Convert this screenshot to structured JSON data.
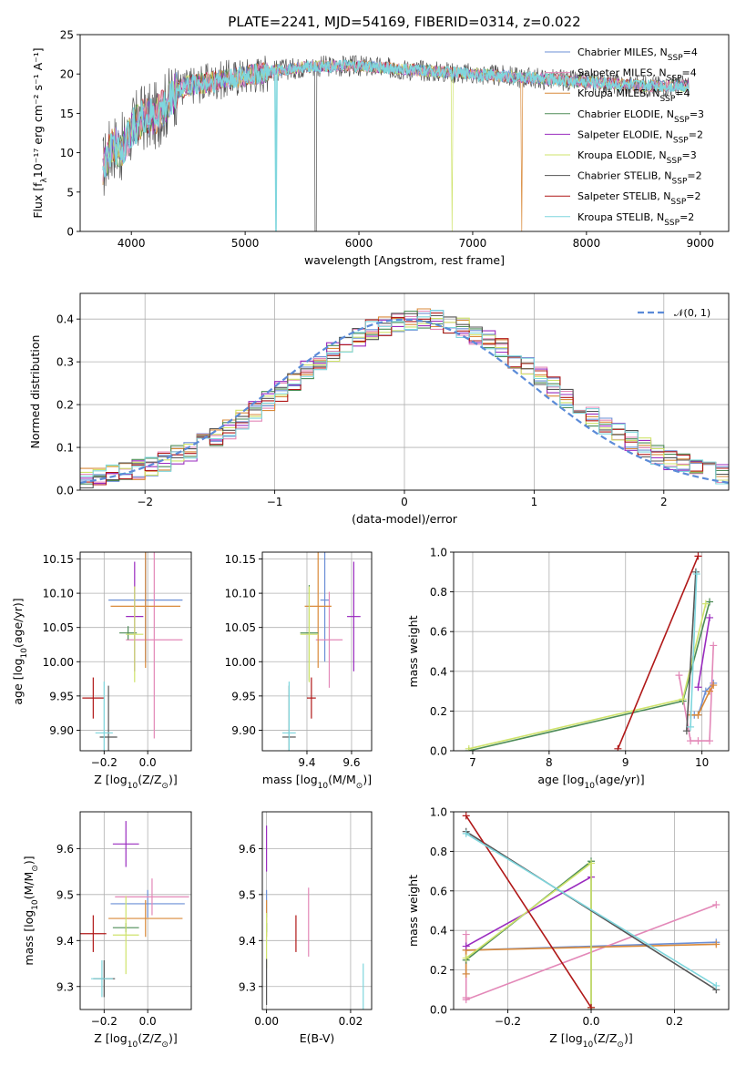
{
  "figure": {
    "title": "PLATE=2241, MJD=54169, FIBERID=0314, z=0.022"
  },
  "colors": {
    "Chabrier MILES": "#6b8fd6",
    "Salpeter MILES": "#e388b8",
    "Kroupa MILES": "#d98a3a",
    "Chabrier ELODIE": "#4d8c57",
    "Salpeter ELODIE": "#9a2bbf",
    "Kroupa ELODIE": "#cfe36b",
    "Chabrier STELIB": "#555555",
    "Salpeter STELIB": "#b01818",
    "Kroupa STELIB": "#7fd6dd"
  },
  "legend_spectrum": [
    {
      "key": "Chabrier MILES",
      "pre": "Chabrier MILES, N",
      "sub": "SSP",
      "post": "=4"
    },
    {
      "key": "Salpeter MILES",
      "pre": "Salpeter MILES, N",
      "sub": "SSP",
      "post": "=4"
    },
    {
      "key": "Kroupa MILES",
      "pre": "Kroupa MILES, N",
      "sub": "SSP",
      "post": "=4"
    },
    {
      "key": "Chabrier ELODIE",
      "pre": "Chabrier ELODIE, N",
      "sub": "SSP",
      "post": "=3"
    },
    {
      "key": "Salpeter ELODIE",
      "pre": "Salpeter ELODIE, N",
      "sub": "SSP",
      "post": "=2"
    },
    {
      "key": "Kroupa ELODIE",
      "pre": "Kroupa ELODIE, N",
      "sub": "SSP",
      "post": "=3"
    },
    {
      "key": "Chabrier STELIB",
      "pre": "Chabrier STELIB, N",
      "sub": "SSP",
      "post": "=2"
    },
    {
      "key": "Salpeter STELIB",
      "pre": "Salpeter STELIB, N",
      "sub": "SSP",
      "post": "=2"
    },
    {
      "key": "Kroupa STELIB",
      "pre": "Kroupa STELIB, N",
      "sub": "SSP",
      "post": "=2"
    }
  ],
  "chart_data": [
    {
      "id": "spectrum",
      "type": "line",
      "xlabel": "wavelength [Angstrom, rest frame]",
      "ylabel_pre": "Flux [f",
      "ylabel_sub": "λ",
      "ylabel_post": "10⁻¹⁷ erg cm⁻² s⁻¹ A⁻¹]",
      "xlim": [
        3550,
        9250
      ],
      "ylim": [
        0,
        25
      ],
      "xticks": [
        4000,
        5000,
        6000,
        7000,
        8000,
        9000
      ],
      "yticks": [
        0,
        5,
        10,
        15,
        20,
        25
      ],
      "grid": false,
      "legend_position": "top-right",
      "continuum": {
        "x": [
          3750,
          3800,
          3850,
          3900,
          3950,
          4000,
          4100,
          4200,
          4300,
          4400,
          4500,
          4700,
          4900,
          5100,
          5300,
          5600,
          6000,
          6500,
          7000,
          7500,
          8000,
          8500,
          8900
        ],
        "y": [
          8,
          10,
          11,
          10.5,
          11,
          13,
          14.5,
          14.5,
          16,
          18,
          18.5,
          19,
          19.5,
          20,
          20.5,
          21,
          21,
          20.5,
          20,
          19.5,
          19,
          18.5,
          18.5
        ]
      },
      "dips": [
        {
          "x": 5270,
          "y": 0,
          "series": "Kroupa STELIB"
        },
        {
          "x": 5620,
          "y": 0,
          "series": "Chabrier STELIB"
        },
        {
          "x": 6820,
          "y": 0,
          "series": "Kroupa ELODIE"
        },
        {
          "x": 7430,
          "y": 0,
          "series": "Kroupa MILES"
        }
      ]
    },
    {
      "id": "residuals",
      "type": "step",
      "xlabel": "(data-model)/error",
      "ylabel": "Normed distribution",
      "xlim": [
        -2.5,
        2.5
      ],
      "ylim": [
        0,
        0.46
      ],
      "xticks": [
        -2,
        -1,
        0,
        1,
        2
      ],
      "xticklabels": [
        "−2",
        "−1",
        "0",
        "1",
        "2"
      ],
      "yticks": [
        0,
        0.1,
        0.2,
        0.3,
        0.4
      ],
      "yticklabels": [
        "0.0",
        "0.1",
        "0.2",
        "0.3",
        "0.4"
      ],
      "grid": true,
      "bin_width": 0.1,
      "legend_label": "𝒩(0, 1)",
      "legend_position": "top-right",
      "reference": {
        "name": "𝒩(0, 1)",
        "mean": 0,
        "sigma": 1
      }
    },
    {
      "id": "age_vs_z",
      "type": "errorbar",
      "xlabel_pre": "Z [log",
      "xlabel_sub": "10",
      "xlabel_post": "(Z/Z",
      "xlabel_sub2": "⊙",
      "xlabel_end": ")]",
      "ylabel_pre": "age  [log",
      "ylabel_sub": "10",
      "ylabel_post": "(age/yr)]",
      "xlim": [
        -0.31,
        0.2
      ],
      "ylim": [
        9.87,
        10.16
      ],
      "xticks": [
        -0.2,
        0.0
      ],
      "xticklabels": [
        "−0.2",
        "0.0"
      ],
      "yticks": [
        9.9,
        9.95,
        10.0,
        10.05,
        10.1,
        10.15
      ],
      "yticklabels": [
        "9.90",
        "9.95",
        "10.00",
        "10.05",
        "10.10",
        "10.15"
      ],
      "grid": true,
      "points": [
        {
          "series": "Chabrier MILES",
          "x": -0.01,
          "xerr": 0.17,
          "y": 10.09,
          "yerr": 0.09
        },
        {
          "series": "Salpeter MILES",
          "x": 0.03,
          "xerr": 0.13,
          "y": 10.032,
          "yerr": 0.144
        },
        {
          "series": "Kroupa MILES",
          "x": -0.01,
          "xerr": 0.16,
          "y": 10.081,
          "yerr": 0.09
        },
        {
          "series": "Chabrier ELODIE",
          "x": -0.09,
          "xerr": 0.04,
          "y": 10.042,
          "yerr": 0.01
        },
        {
          "series": "Salpeter ELODIE",
          "x": -0.06,
          "xerr": 0.04,
          "y": 10.066,
          "yerr": 0.08
        },
        {
          "series": "Kroupa ELODIE",
          "x": -0.06,
          "xerr": 0.04,
          "y": 10.04,
          "yerr": 0.07
        },
        {
          "series": "Chabrier STELIB",
          "x": -0.18,
          "xerr": 0.04,
          "y": 9.89,
          "yerr": 0.075
        },
        {
          "series": "Salpeter STELIB",
          "x": -0.25,
          "xerr": 0.05,
          "y": 9.947,
          "yerr": 0.03
        },
        {
          "series": "Kroupa STELIB",
          "x": -0.2,
          "xerr": 0.04,
          "y": 9.896,
          "yerr": 0.075
        }
      ]
    },
    {
      "id": "age_vs_mass",
      "type": "errorbar",
      "xlabel_pre": "mass [log",
      "xlabel_sub": "10",
      "xlabel_post": "(M/M",
      "xlabel_sub2": "⊙",
      "xlabel_end": ")]",
      "xlim": [
        9.2,
        9.69
      ],
      "ylim": [
        9.87,
        10.16
      ],
      "xticks": [
        9.4,
        9.6
      ],
      "xticklabels": [
        "9.4",
        "9.6"
      ],
      "yticks": [
        9.9,
        9.95,
        10.0,
        10.05,
        10.1,
        10.15
      ],
      "yticklabels": [
        "9.90",
        "9.95",
        "10.00",
        "10.05",
        "10.10",
        "10.15"
      ],
      "grid": true,
      "points": [
        {
          "series": "Chabrier MILES",
          "x": 9.48,
          "xerr": 0.02,
          "y": 10.09,
          "yerr": 0.09
        },
        {
          "series": "Salpeter MILES",
          "x": 9.5,
          "xerr": 0.06,
          "y": 10.032,
          "yerr": 0.07
        },
        {
          "series": "Kroupa MILES",
          "x": 9.45,
          "xerr": 0.06,
          "y": 10.081,
          "yerr": 0.09
        },
        {
          "series": "Chabrier ELODIE",
          "x": 9.41,
          "xerr": 0.04,
          "y": 10.042,
          "yerr": 0.07
        },
        {
          "series": "Salpeter ELODIE",
          "x": 9.61,
          "xerr": 0.03,
          "y": 10.066,
          "yerr": 0.08
        },
        {
          "series": "Kroupa ELODIE",
          "x": 9.41,
          "xerr": 0.04,
          "y": 10.04,
          "yerr": 0.07
        },
        {
          "series": "Chabrier STELIB",
          "x": 9.32,
          "xerr": 0.03,
          "y": 9.89,
          "yerr": 0.075
        },
        {
          "series": "Salpeter STELIB",
          "x": 9.42,
          "xerr": 0.02,
          "y": 9.947,
          "yerr": 0.03
        },
        {
          "series": "Kroupa STELIB",
          "x": 9.32,
          "xerr": 0.03,
          "y": 9.896,
          "yerr": 0.075
        }
      ]
    },
    {
      "id": "weight_vs_age",
      "type": "line",
      "xlabel_pre": "age  [log",
      "xlabel_sub": "10",
      "xlabel_post": "(age/yr)]",
      "ylabel": "mass weight",
      "xlim": [
        6.75,
        10.35
      ],
      "ylim": [
        0,
        1
      ],
      "xticks": [
        7,
        8,
        9,
        10
      ],
      "yticks": [
        0,
        0.2,
        0.4,
        0.6,
        0.8,
        1.0
      ],
      "yticklabels": [
        "0.0",
        "0.2",
        "0.4",
        "0.6",
        "0.8",
        "1.0"
      ],
      "grid": true,
      "series": [
        {
          "name": "Chabrier MILES",
          "x": [
            9.9,
            9.95,
            10.05,
            10.15
          ],
          "y": [
            0.18,
            0.18,
            0.3,
            0.34
          ]
        },
        {
          "name": "Salpeter MILES",
          "x": [
            9.7,
            9.85,
            9.95,
            10.1,
            10.15
          ],
          "y": [
            0.38,
            0.05,
            0.05,
            0.05,
            0.53
          ]
        },
        {
          "name": "Kroupa MILES",
          "x": [
            9.85,
            9.95,
            10.1,
            10.15
          ],
          "y": [
            0.18,
            0.18,
            0.3,
            0.33
          ]
        },
        {
          "name": "Chabrier ELODIE",
          "x": [
            6.95,
            9.75,
            10.1
          ],
          "y": [
            0.0,
            0.25,
            0.75
          ]
        },
        {
          "name": "Salpeter ELODIE",
          "x": [
            9.95,
            10.1
          ],
          "y": [
            0.32,
            0.67
          ]
        },
        {
          "name": "Kroupa ELODIE",
          "x": [
            6.95,
            9.75,
            10.05
          ],
          "y": [
            0.01,
            0.26,
            0.74
          ]
        },
        {
          "name": "Chabrier STELIB",
          "x": [
            9.8,
            9.92
          ],
          "y": [
            0.1,
            0.9
          ]
        },
        {
          "name": "Salpeter STELIB",
          "x": [
            8.9,
            9.95
          ],
          "y": [
            0.01,
            0.98
          ]
        },
        {
          "name": "Kroupa STELIB",
          "x": [
            9.85,
            9.93
          ],
          "y": [
            0.12,
            0.89
          ]
        }
      ]
    },
    {
      "id": "mass_vs_z",
      "type": "errorbar",
      "xlabel_pre": "Z [log",
      "xlabel_sub": "10",
      "xlabel_post": "(Z/Z",
      "xlabel_sub2": "⊙",
      "xlabel_end": ")]",
      "ylabel_pre": "mass [log",
      "ylabel_sub": "10",
      "ylabel_post": "(M/M",
      "ylabel_sub2": "⊙",
      "ylabel_end": ")]",
      "xlim": [
        -0.31,
        0.2
      ],
      "ylim": [
        9.25,
        9.68
      ],
      "xticks": [
        -0.2,
        0.0
      ],
      "xticklabels": [
        "−0.2",
        "0.0"
      ],
      "yticks": [
        9.3,
        9.4,
        9.5,
        9.6
      ],
      "grid": true,
      "points": [
        {
          "series": "Chabrier MILES",
          "x": 0.0,
          "xerr": 0.17,
          "y": 9.48,
          "yerr": 0.03
        },
        {
          "series": "Salpeter MILES",
          "x": 0.02,
          "xerr": 0.17,
          "y": 9.495,
          "yerr": 0.04
        },
        {
          "series": "Kroupa MILES",
          "x": -0.01,
          "xerr": 0.17,
          "y": 9.448,
          "yerr": 0.04
        },
        {
          "series": "Chabrier ELODIE",
          "x": -0.1,
          "xerr": 0.06,
          "y": 9.428,
          "yerr": 0.01
        },
        {
          "series": "Salpeter ELODIE",
          "x": -0.1,
          "xerr": 0.06,
          "y": 9.61,
          "yerr": 0.05
        },
        {
          "series": "Kroupa ELODIE",
          "x": -0.1,
          "xerr": 0.06,
          "y": 9.412,
          "yerr": 0.085
        },
        {
          "series": "Chabrier STELIB",
          "x": -0.2,
          "xerr": 0.05,
          "y": 9.317,
          "yerr": 0.04
        },
        {
          "series": "Salpeter STELIB",
          "x": -0.25,
          "xerr": 0.06,
          "y": 9.415,
          "yerr": 0.04
        },
        {
          "series": "Kroupa STELIB",
          "x": -0.21,
          "xerr": 0.05,
          "y": 9.317,
          "yerr": 0.04
        }
      ]
    },
    {
      "id": "mass_vs_ebv",
      "type": "errorbar",
      "xlabel": "E(B-V)",
      "xlim": [
        -0.001,
        0.025
      ],
      "ylim": [
        9.25,
        9.68
      ],
      "xticks": [
        0.0,
        0.02
      ],
      "xticklabels": [
        "0.00",
        "0.02"
      ],
      "yticks": [
        9.3,
        9.4,
        9.5,
        9.6
      ],
      "grid": true,
      "points": [
        {
          "series": "Chabrier MILES",
          "x": 0.0,
          "xerr": 0,
          "y": 9.48,
          "yerr": 0.03
        },
        {
          "series": "Salpeter MILES",
          "x": 0.01,
          "xerr": 0,
          "y": 9.44,
          "yerr": 0.075
        },
        {
          "series": "Kroupa MILES",
          "x": 0.0,
          "xerr": 0,
          "y": 9.448,
          "yerr": 0.04
        },
        {
          "series": "Chabrier ELODIE",
          "x": 0.0,
          "xerr": 0,
          "y": 9.428,
          "yerr": 0.01
        },
        {
          "series": "Salpeter ELODIE",
          "x": 0.0,
          "xerr": 0,
          "y": 9.6,
          "yerr": 0.05
        },
        {
          "series": "Kroupa ELODIE",
          "x": 0.0,
          "xerr": 0,
          "y": 9.4,
          "yerr": 0.06
        },
        {
          "series": "Chabrier STELIB",
          "x": 0.0,
          "xerr": 0,
          "y": 9.31,
          "yerr": 0.05
        },
        {
          "series": "Salpeter STELIB",
          "x": 0.007,
          "xerr": 0,
          "y": 9.415,
          "yerr": 0.04
        },
        {
          "series": "Kroupa STELIB",
          "x": 0.023,
          "xerr": 0,
          "y": 9.3,
          "yerr": 0.05
        }
      ]
    },
    {
      "id": "weight_vs_z",
      "type": "line",
      "xlabel_pre": "Z [log",
      "xlabel_sub": "10",
      "xlabel_post": "(Z/Z",
      "xlabel_sub2": "⊙",
      "xlabel_end": ")]",
      "ylabel": "mass weight",
      "xlim": [
        -0.33,
        0.33
      ],
      "ylim": [
        0,
        1
      ],
      "xticks": [
        -0.2,
        0.0,
        0.2
      ],
      "xticklabels": [
        "−0.2",
        "0.0",
        "0.2"
      ],
      "yticks": [
        0,
        0.2,
        0.4,
        0.6,
        0.8,
        1.0
      ],
      "yticklabels": [
        "0.0",
        "0.2",
        "0.4",
        "0.6",
        "0.8",
        "1.0"
      ],
      "grid": true,
      "series": [
        {
          "name": "Chabrier MILES",
          "x": [
            -0.3,
            -0.3,
            0.3
          ],
          "y": [
            0.18,
            0.3,
            0.34
          ]
        },
        {
          "name": "Salpeter MILES",
          "x": [
            -0.3,
            -0.3,
            -0.3,
            0.3
          ],
          "y": [
            0.38,
            0.06,
            0.05,
            0.53
          ]
        },
        {
          "name": "Kroupa MILES",
          "x": [
            -0.3,
            -0.3,
            0.3
          ],
          "y": [
            0.18,
            0.3,
            0.33
          ]
        },
        {
          "name": "Chabrier ELODIE",
          "x": [
            -0.3,
            0.0,
            0.0
          ],
          "y": [
            0.25,
            0.75,
            0.0
          ]
        },
        {
          "name": "Salpeter ELODIE",
          "x": [
            -0.3,
            0.0
          ],
          "y": [
            0.32,
            0.67
          ]
        },
        {
          "name": "Kroupa ELODIE",
          "x": [
            -0.3,
            0.0,
            0.0
          ],
          "y": [
            0.26,
            0.74,
            0.01
          ]
        },
        {
          "name": "Chabrier STELIB",
          "x": [
            -0.3,
            0.3
          ],
          "y": [
            0.9,
            0.1
          ]
        },
        {
          "name": "Salpeter STELIB",
          "x": [
            -0.3,
            0.0
          ],
          "y": [
            0.98,
            0.01
          ]
        },
        {
          "name": "Kroupa STELIB",
          "x": [
            -0.3,
            0.3
          ],
          "y": [
            0.89,
            0.12
          ]
        }
      ]
    }
  ]
}
